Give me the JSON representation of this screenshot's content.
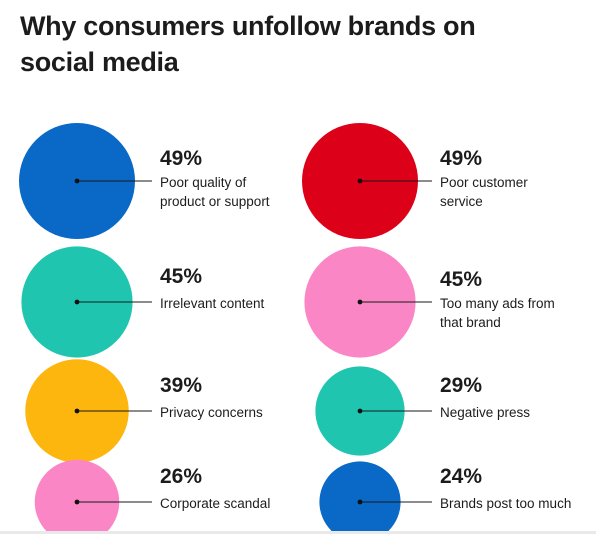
{
  "chart_data": {
    "type": "bubble",
    "title": "Why consumers unfollow brands on social media",
    "items": [
      {
        "value_label": "49%",
        "value": 49,
        "label": "Poor quality of\nproduct or support",
        "color": "#0a68c6"
      },
      {
        "value_label": "49%",
        "value": 49,
        "label": "Poor customer\nservice",
        "color": "#dc0019"
      },
      {
        "value_label": "45%",
        "value": 45,
        "label": "Irrelevant content",
        "color": "#20c5b0"
      },
      {
        "value_label": "45%",
        "value": 45,
        "label": "Too many ads from\nthat brand",
        "color": "#fb86c5"
      },
      {
        "value_label": "39%",
        "value": 39,
        "label": "Privacy concerns",
        "color": "#fdb60e"
      },
      {
        "value_label": "29%",
        "value": 29,
        "label": "Negative press",
        "color": "#20c5b0"
      },
      {
        "value_label": "26%",
        "value": 26,
        "label": "Corporate scandal",
        "color": "#fb86c5"
      },
      {
        "value_label": "24%",
        "value": 24,
        "label": "Brands post too much",
        "color": "#0a68c6"
      }
    ]
  }
}
